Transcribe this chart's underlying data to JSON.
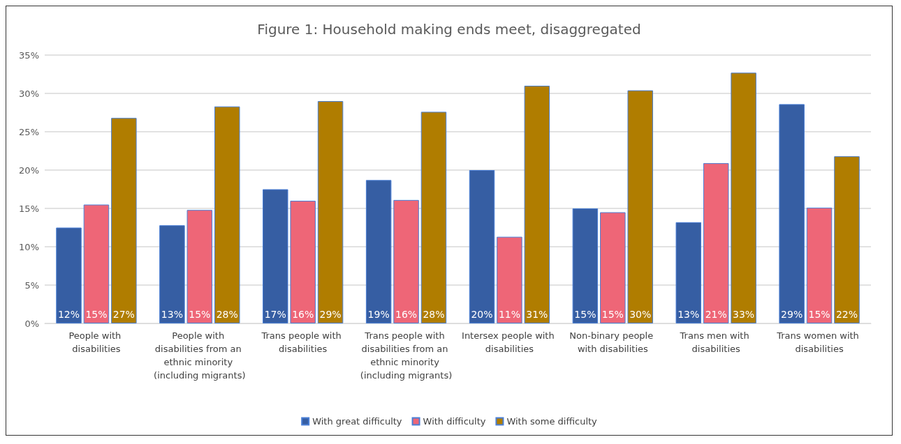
{
  "chart_data": {
    "type": "bar",
    "title": "Figure 1: Household making ends meet, disaggregated",
    "categories": [
      "People with disabilities",
      "People with disabilities from an ethnic minority (including migrants)",
      "Trans people with disabilities",
      "Trans people with disabilities from an ethnic minority (including migrants)",
      "Intersex people with disabilities",
      "Non-binary people with disabilities",
      "Trans men with disabilities",
      "Trans women with disabilities"
    ],
    "series": [
      {
        "name": "With great difficulty",
        "color": "#365ea3",
        "values": [
          12.5,
          12.8,
          17.5,
          18.7,
          20.0,
          15.0,
          13.2,
          28.6
        ],
        "value_labels": [
          "12%",
          "13%",
          "17%",
          "19%",
          "20%",
          "15%",
          "13%",
          "29%"
        ]
      },
      {
        "name": "With difficulty",
        "color": "#ee6677",
        "values": [
          15.5,
          14.8,
          16.0,
          16.1,
          11.3,
          14.5,
          20.9,
          15.1
        ],
        "value_labels": [
          "15%",
          "15%",
          "16%",
          "16%",
          "11%",
          "15%",
          "21%",
          "15%"
        ]
      },
      {
        "name": "With some difficulty",
        "color": "#b07d00",
        "values": [
          26.8,
          28.3,
          29.0,
          27.6,
          31.0,
          30.4,
          32.7,
          21.8
        ],
        "value_labels": [
          "27%",
          "28%",
          "29%",
          "28%",
          "31%",
          "30%",
          "33%",
          "22%"
        ]
      }
    ],
    "ylim": [
      0,
      35
    ],
    "yticks": [
      {
        "value": 0,
        "label": "0%"
      },
      {
        "value": 5,
        "label": "5%"
      },
      {
        "value": 10,
        "label": "10%"
      },
      {
        "value": 15,
        "label": "15%"
      },
      {
        "value": 20,
        "label": "20%"
      },
      {
        "value": 25,
        "label": "25%"
      },
      {
        "value": 30,
        "label": "30%"
      },
      {
        "value": 35,
        "label": "35%"
      }
    ],
    "grid": "y",
    "legend": "bottom"
  }
}
